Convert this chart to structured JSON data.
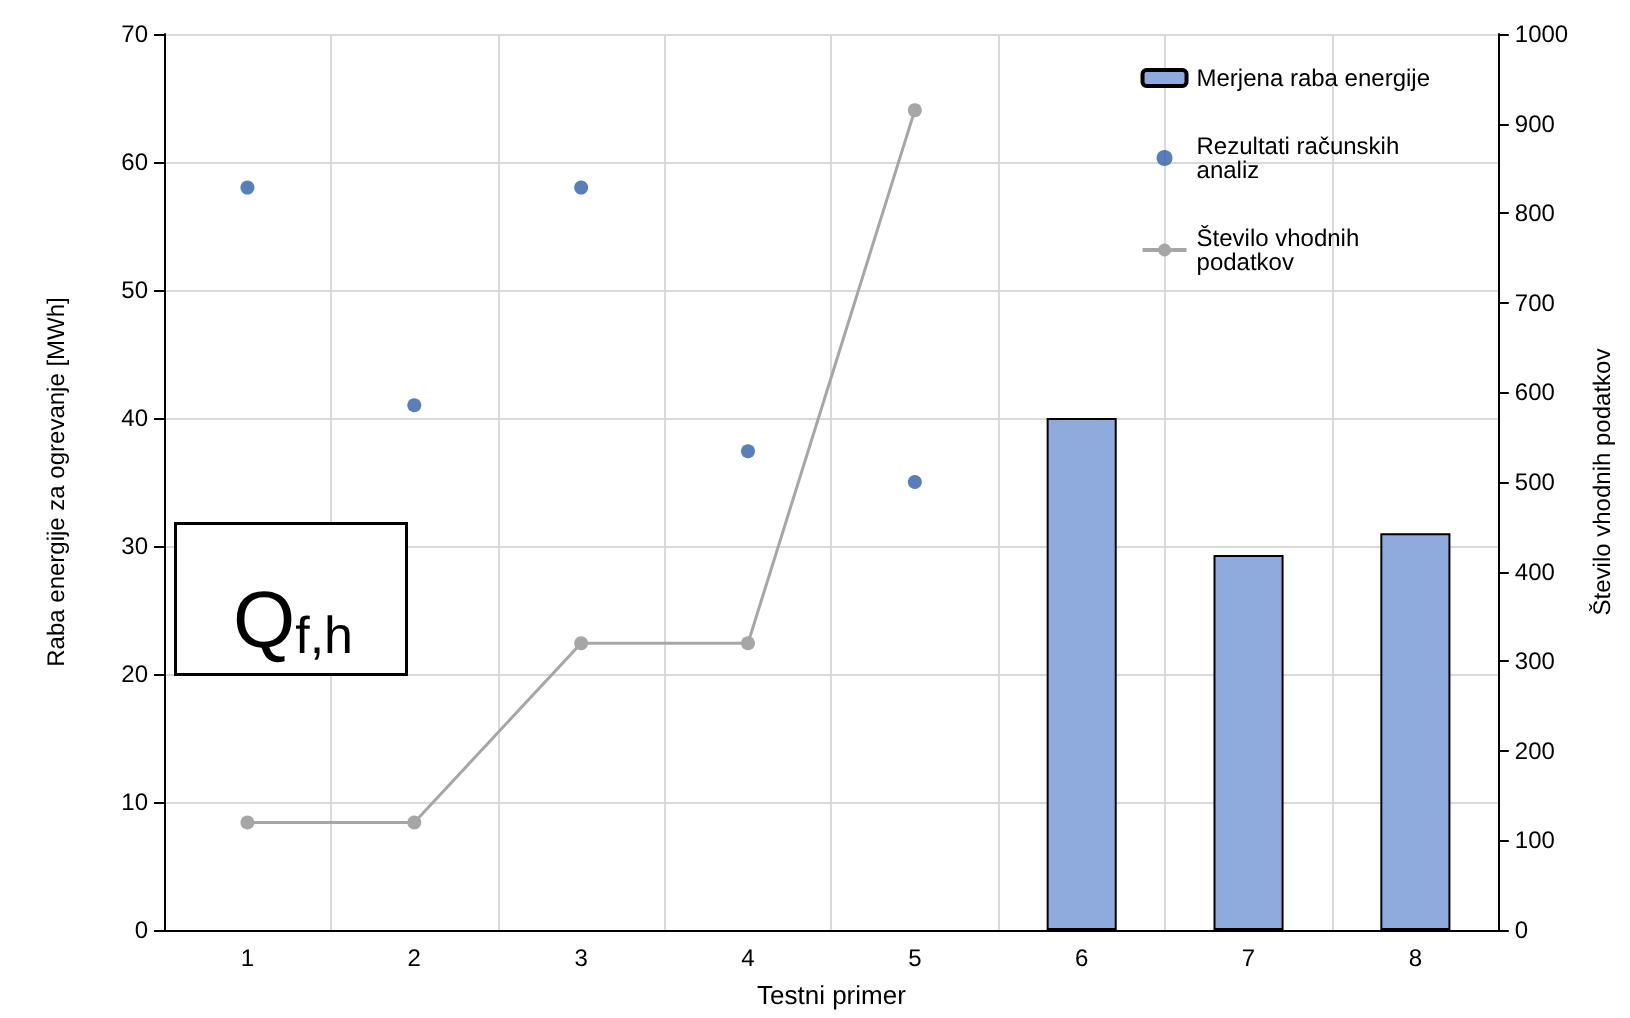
{
  "chart_data": {
    "type": "bar",
    "xlabel": "Testni primer",
    "ylabel": "Raba energije za ogrevanje [MWh]",
    "y2label": "Število vhodnih podatkov",
    "categories": [
      "1",
      "2",
      "3",
      "4",
      "5",
      "6",
      "7",
      "8"
    ],
    "series": [
      {
        "name": "Merjena raba energije",
        "color": "#8faadc",
        "values": [
          null,
          null,
          null,
          null,
          null,
          40,
          29.3,
          31
        ]
      },
      {
        "name": "Rezultati računskih analiz",
        "type": "scatter",
        "color": "#2e5fa8",
        "marker": "circle",
        "values": [
          58,
          41,
          58,
          37.4,
          35,
          null,
          null,
          null
        ]
      },
      {
        "name": "Število vhodnih podatkov",
        "type": "line",
        "axis": "y2",
        "color": "#a6a6a6",
        "marker": "circle",
        "line_style": "solid",
        "values": [
          120,
          120,
          320,
          320,
          915,
          null,
          null,
          null
        ]
      }
    ],
    "ylim": [
      0,
      70
    ],
    "yticks": [
      0,
      10,
      20,
      30,
      40,
      50,
      60,
      70
    ],
    "y2lim": [
      0,
      1000
    ],
    "y2ticks": [
      0,
      100,
      200,
      300,
      400,
      500,
      600,
      700,
      800,
      900,
      1000
    ],
    "grid": true,
    "legend": "top right",
    "annotations": [
      "Q$_{f,h}$"
    ]
  }
}
